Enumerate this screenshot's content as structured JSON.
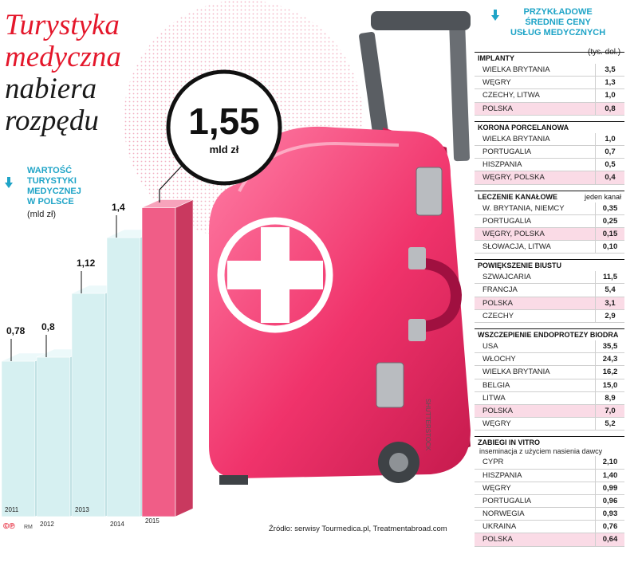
{
  "headline": {
    "line1": "Turystyka",
    "line2": "medyczna",
    "line3": "nabiera",
    "line4": "rozpędu"
  },
  "bubble": {
    "value": "1,55",
    "unit": "mld zł"
  },
  "left_chart_label": {
    "line1": "WARTOŚĆ",
    "line2": "TURYSTYKI",
    "line3": "MEDYCZNEJ",
    "line4": "W POLSCE"
  },
  "left_chart_unit": "(mld zł)",
  "right_panel_title": {
    "line1": "PRZYKŁADOWE",
    "line2": "ŚREDNIE CENY",
    "line3": "USŁUG MEDYCZNYCH"
  },
  "right_panel_unit": "(tys. dol.)",
  "watermark": "SHUTTERSTOCK",
  "chart_data": [
    {
      "type": "bar",
      "categories": [
        "2011",
        "2012",
        "2013",
        "2014",
        "2015"
      ],
      "values": [
        0.78,
        0.8,
        1.12,
        1.4,
        1.55
      ],
      "value_labels": [
        "0,78",
        "0,8",
        "1,12",
        "1,4",
        ""
      ],
      "ylabel": "(mld zł)",
      "ylim": [
        0,
        1.6
      ]
    },
    {
      "type": "table",
      "sections": [
        {
          "title": "IMPLANTY",
          "note": "",
          "subtitle": "",
          "rows": [
            {
              "name": "WIELKA BRYTANIA",
              "value": "3,5",
              "highlight": false
            },
            {
              "name": "WĘGRY",
              "value": "1,3",
              "highlight": false
            },
            {
              "name": "CZECHY, LITWA",
              "value": "1,0",
              "highlight": false
            },
            {
              "name": "POLSKA",
              "value": "0,8",
              "highlight": true
            }
          ]
        },
        {
          "title": "KORONA PORCELANOWA",
          "note": "",
          "subtitle": "",
          "rows": [
            {
              "name": "WIELKA BRYTANIA",
              "value": "1,0",
              "highlight": false
            },
            {
              "name": "PORTUGALIA",
              "value": "0,7",
              "highlight": false
            },
            {
              "name": "HISZPANIA",
              "value": "0,5",
              "highlight": false
            },
            {
              "name": "WĘGRY, POLSKA",
              "value": "0,4",
              "highlight": true
            }
          ]
        },
        {
          "title": "LECZENIE KANAŁOWE",
          "note": "jeden kanał",
          "subtitle": "",
          "rows": [
            {
              "name": "W. BRYTANIA, NIEMCY",
              "value": "0,35",
              "highlight": false
            },
            {
              "name": "PORTUGALIA",
              "value": "0,25",
              "highlight": false
            },
            {
              "name": "WĘGRY, POLSKA",
              "value": "0,15",
              "highlight": true
            },
            {
              "name": "SŁOWACJA, LITWA",
              "value": "0,10",
              "highlight": false
            }
          ]
        },
        {
          "title": "POWIĘKSZENIE BIUSTU",
          "note": "",
          "subtitle": "",
          "rows": [
            {
              "name": "SZWAJCARIA",
              "value": "11,5",
              "highlight": false
            },
            {
              "name": "FRANCJA",
              "value": "5,4",
              "highlight": false
            },
            {
              "name": "POLSKA",
              "value": "3,1",
              "highlight": true
            },
            {
              "name": "CZECHY",
              "value": "2,9",
              "highlight": false
            }
          ]
        },
        {
          "title": "WSZCZEPIENIE ENDOPROTEZY BIODRA",
          "note": "",
          "subtitle": "",
          "rows": [
            {
              "name": "USA",
              "value": "35,5",
              "highlight": false
            },
            {
              "name": "WŁOCHY",
              "value": "24,3",
              "highlight": false
            },
            {
              "name": "WIELKA BRYTANIA",
              "value": "16,2",
              "highlight": false
            },
            {
              "name": "BELGIA",
              "value": "15,0",
              "highlight": false
            },
            {
              "name": "LITWA",
              "value": "8,9",
              "highlight": false
            },
            {
              "name": "POLSKA",
              "value": "7,0",
              "highlight": true
            },
            {
              "name": "WĘGRY",
              "value": "5,2",
              "highlight": false
            }
          ]
        },
        {
          "title": "ZABIEGI IN VITRO",
          "note": "",
          "subtitle": "inseminacja z użyciem nasienia dawcy",
          "rows": [
            {
              "name": "CYPR",
              "value": "2,10",
              "highlight": false
            },
            {
              "name": "HISZPANIA",
              "value": "1,40",
              "highlight": false
            },
            {
              "name": "WĘGRY",
              "value": "0,99",
              "highlight": false
            },
            {
              "name": "PORTUGALIA",
              "value": "0,96",
              "highlight": false
            },
            {
              "name": "NORWEGIA",
              "value": "0,93",
              "highlight": false
            },
            {
              "name": "UKRAINA",
              "value": "0,76",
              "highlight": false
            },
            {
              "name": "POLSKA",
              "value": "0,64",
              "highlight": true
            }
          ]
        }
      ]
    }
  ],
  "source": "Źródło: serwisy Tourmedica.pl, Treatmentabroad.com",
  "logo": "©℗",
  "credit": "RM",
  "colors": {
    "accent_red": "#e4172b",
    "cyan": "#1fa4c7",
    "bar_light": "#d6f0f1",
    "bar_highlight": "#f05d87",
    "row_highlight": "#fadbe6",
    "case_pink": "#f2396f"
  },
  "icons": [
    "down-arrow-icon",
    "medical-cross-icon",
    "suitcase-illustration"
  ]
}
